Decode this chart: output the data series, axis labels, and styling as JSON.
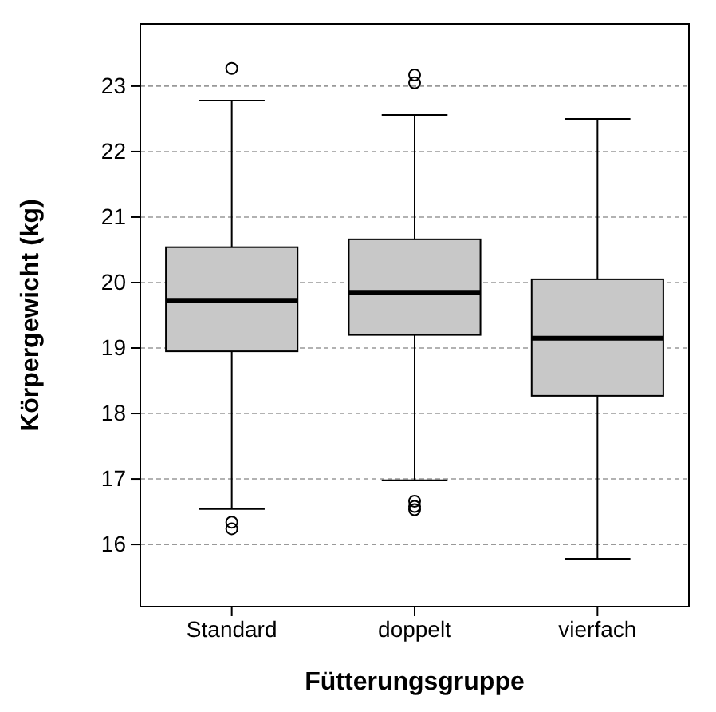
{
  "chart_data": {
    "type": "box",
    "xlabel": "Fütterungsgruppe",
    "ylabel": "Körpergewicht (kg)",
    "categories": [
      "Standard",
      "doppelt",
      "vierfach"
    ],
    "boxes": [
      {
        "low": 16.54,
        "q1": 18.95,
        "median": 19.73,
        "q3": 20.54,
        "high": 22.78,
        "outliers": [
          16.34,
          16.24,
          23.27
        ]
      },
      {
        "low": 16.98,
        "q1": 19.2,
        "median": 19.85,
        "q3": 20.66,
        "high": 22.56,
        "outliers": [
          16.66,
          16.58,
          16.53,
          23.17,
          23.05
        ]
      },
      {
        "low": 15.78,
        "q1": 18.27,
        "median": 19.15,
        "q3": 20.05,
        "high": 22.5
      }
    ],
    "color": "#c8c8c8",
    "ylim": [
      15.05,
      23.95
    ],
    "yticks": [
      16,
      17,
      18,
      19,
      20,
      21,
      22,
      23
    ],
    "grid": "y"
  }
}
